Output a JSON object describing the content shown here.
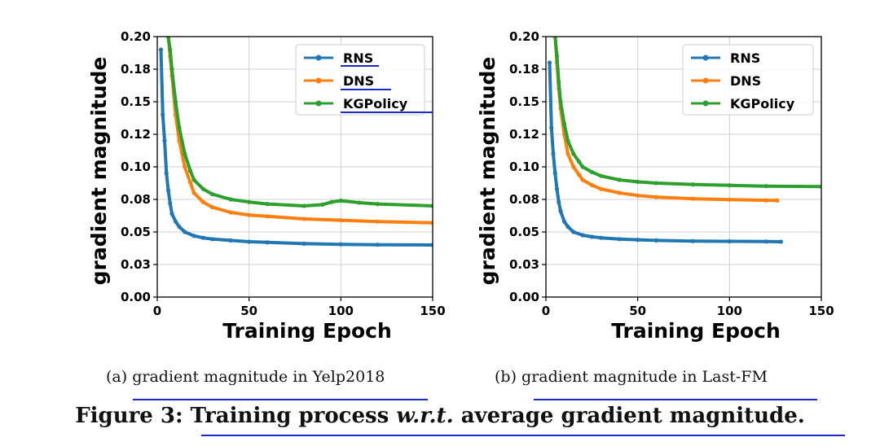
{
  "chart_data": [
    {
      "type": "line",
      "xlabel": "Training Epoch",
      "ylabel": "gradient magnitude",
      "xlim": [
        0,
        150
      ],
      "ylim": [
        0.0,
        0.2
      ],
      "xticks": [
        "0",
        "50",
        "100",
        "150"
      ],
      "yticks": [
        "0.00",
        "0.03",
        "0.05",
        "0.08",
        "0.10",
        "0.12",
        "0.15",
        "0.18",
        "0.20"
      ],
      "grid": true,
      "legend": "top-right",
      "series": [
        {
          "name": "RNS",
          "color": "#1f77b4",
          "x": [
            2,
            3,
            4,
            5,
            6,
            7,
            8,
            10,
            12,
            15,
            20,
            25,
            30,
            40,
            50,
            60,
            80,
            100,
            120,
            150
          ],
          "y": [
            0.19,
            0.14,
            0.12,
            0.095,
            0.082,
            0.072,
            0.064,
            0.058,
            0.054,
            0.05,
            0.047,
            0.0455,
            0.0445,
            0.0435,
            0.0425,
            0.042,
            0.041,
            0.0405,
            0.0402,
            0.04
          ]
        },
        {
          "name": "DNS",
          "color": "#ff7f0e",
          "x": [
            5,
            6,
            7,
            8,
            10,
            12,
            15,
            18,
            20,
            25,
            30,
            40,
            50,
            60,
            80,
            100,
            120,
            150
          ],
          "y": [
            0.22,
            0.2,
            0.185,
            0.17,
            0.14,
            0.12,
            0.1,
            0.088,
            0.08,
            0.073,
            0.069,
            0.065,
            0.063,
            0.062,
            0.06,
            0.059,
            0.058,
            0.057
          ]
        },
        {
          "name": "KGPolicy",
          "color": "#2ca02c",
          "x": [
            5,
            6,
            7,
            8,
            10,
            12,
            15,
            18,
            20,
            25,
            30,
            40,
            50,
            60,
            80,
            90,
            95,
            100,
            110,
            120,
            150
          ],
          "y": [
            0.22,
            0.2,
            0.19,
            0.175,
            0.15,
            0.13,
            0.11,
            0.097,
            0.09,
            0.083,
            0.079,
            0.075,
            0.073,
            0.0715,
            0.07,
            0.071,
            0.073,
            0.074,
            0.0725,
            0.0715,
            0.07
          ]
        }
      ]
    },
    {
      "type": "line",
      "xlabel": "Training Epoch",
      "ylabel": "gradient magnitude",
      "xlim": [
        0,
        150
      ],
      "ylim": [
        0.0,
        0.2
      ],
      "xticks": [
        "0",
        "50",
        "100",
        "150"
      ],
      "yticks": [
        "0.00",
        "0.03",
        "0.05",
        "0.08",
        "0.10",
        "0.12",
        "0.15",
        "0.18",
        "0.20"
      ],
      "grid": true,
      "legend": "top-right",
      "series": [
        {
          "name": "RNS",
          "color": "#1f77b4",
          "x": [
            2,
            3,
            4,
            5,
            6,
            7,
            8,
            10,
            12,
            15,
            20,
            25,
            30,
            40,
            50,
            60,
            80,
            100,
            120,
            128
          ],
          "y": [
            0.18,
            0.13,
            0.11,
            0.095,
            0.083,
            0.073,
            0.066,
            0.058,
            0.054,
            0.05,
            0.0475,
            0.0463,
            0.0455,
            0.0445,
            0.044,
            0.0435,
            0.043,
            0.0428,
            0.0426,
            0.0425
          ]
        },
        {
          "name": "DNS",
          "color": "#ff7f0e",
          "x": [
            5,
            6,
            7,
            8,
            10,
            12,
            15,
            18,
            20,
            25,
            30,
            40,
            50,
            60,
            80,
            100,
            120,
            126
          ],
          "y": [
            0.2,
            0.18,
            0.16,
            0.145,
            0.125,
            0.11,
            0.1,
            0.094,
            0.09,
            0.086,
            0.083,
            0.08,
            0.078,
            0.0768,
            0.0755,
            0.0748,
            0.0743,
            0.0742
          ]
        },
        {
          "name": "KGPolicy",
          "color": "#2ca02c",
          "x": [
            5,
            6,
            7,
            8,
            10,
            12,
            15,
            18,
            20,
            25,
            30,
            40,
            50,
            60,
            80,
            100,
            120,
            150
          ],
          "y": [
            0.2,
            0.185,
            0.165,
            0.15,
            0.133,
            0.12,
            0.11,
            0.104,
            0.1,
            0.096,
            0.093,
            0.09,
            0.0885,
            0.0875,
            0.0865,
            0.0858,
            0.0852,
            0.0848
          ]
        }
      ]
    }
  ],
  "captions": {
    "sub_a_prefix": "(a)",
    "sub_a": "gradient magnitude in Yelp2018",
    "sub_b_prefix": "(b)",
    "sub_b": "gradient magnitude in Last-FM",
    "figure_label": "Figure 3:",
    "figure_text_1": "Training process",
    "figure_text_italic": "w.r.t.",
    "figure_text_2": "average gradient magnitude."
  },
  "annotation_color": "#1a28c8"
}
